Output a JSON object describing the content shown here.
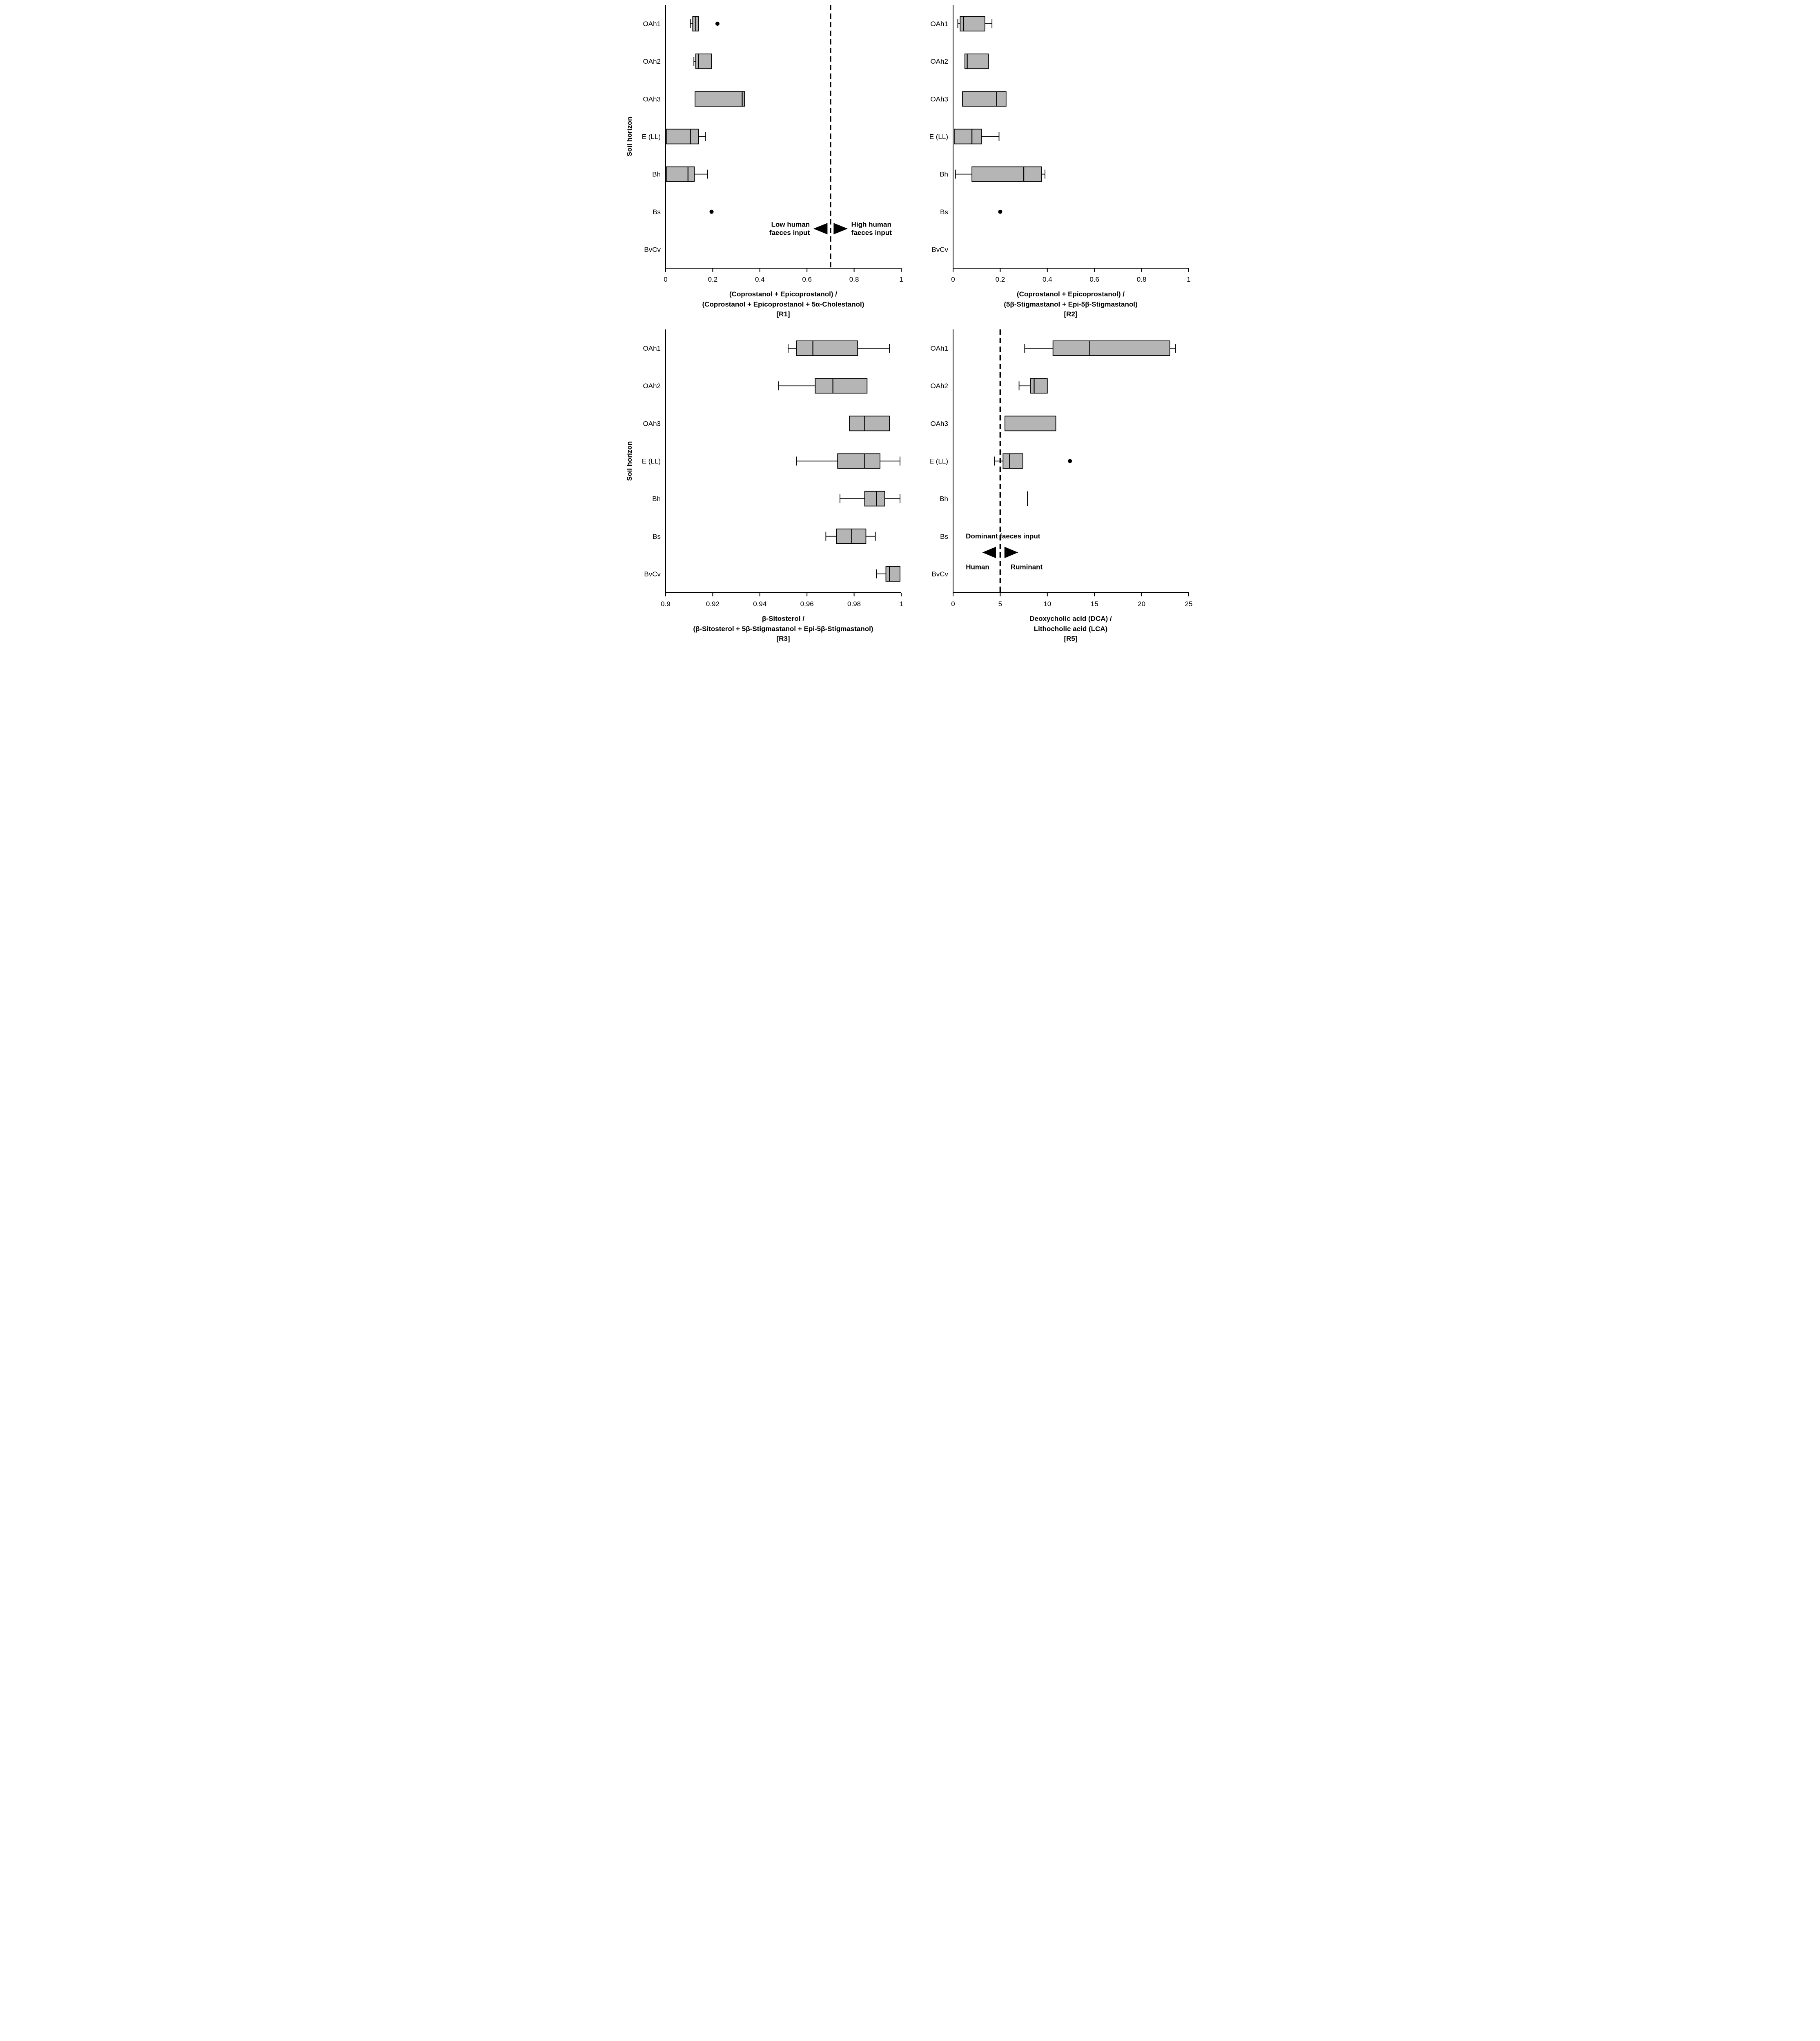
{
  "figure": {
    "ylabel": "Soil horizon",
    "colors": {
      "box_fill": "#b5b5b5",
      "stroke": "#000000",
      "background": "#ffffff"
    }
  },
  "chart_data": [
    {
      "type": "boxplot",
      "orientation": "horizontal",
      "panel_id": "R1",
      "show_ylabel": true,
      "title_lines": [
        "(Coprostanol + Epicoprostanol) /",
        "(Coprostanol + Epicoprostanol + 5α-Cholestanol)",
        "[R1]"
      ],
      "categories": [
        "OAh1",
        "OAh2",
        "OAh3",
        "E (LL)",
        "Bh",
        "Bs",
        "BvCv"
      ],
      "xlim": [
        0,
        1
      ],
      "xticks": [
        0,
        0.2,
        0.4,
        0.6,
        0.8,
        1
      ],
      "xtick_labels": [
        "0",
        "0.2",
        "0.4",
        "0.6",
        "0.8",
        "1"
      ],
      "dashed_line_x": 0.7,
      "boxes": [
        {
          "category": "OAh1",
          "low": 0.105,
          "q1": 0.115,
          "median": 0.128,
          "q3": 0.14,
          "high": null,
          "outliers": [
            0.22
          ]
        },
        {
          "category": "OAh2",
          "low": 0.12,
          "q1": 0.128,
          "median": 0.14,
          "q3": 0.195,
          "high": null,
          "outliers": []
        },
        {
          "category": "OAh3",
          "low": null,
          "q1": 0.125,
          "median": 0.325,
          "q3": 0.335,
          "high": null,
          "outliers": []
        },
        {
          "category": "E (LL)",
          "low": null,
          "q1": 0.003,
          "median": 0.105,
          "q3": 0.14,
          "high": 0.17,
          "outliers": []
        },
        {
          "category": "Bh",
          "low": null,
          "q1": 0.003,
          "median": 0.095,
          "q3": 0.122,
          "high": 0.178,
          "outliers": []
        },
        {
          "category": "Bs",
          "low": null,
          "q1": null,
          "median": null,
          "q3": null,
          "high": null,
          "outliers": [
            0.195
          ]
        },
        {
          "category": "BvCv",
          "low": null,
          "q1": null,
          "median": null,
          "q3": null,
          "high": null,
          "outliers": []
        }
      ],
      "annotations": [
        {
          "text": "Low human\nfaeces input",
          "x": 0.612,
          "row_u": 5.95,
          "anchor": "end"
        },
        {
          "text": "High human\nfaeces input",
          "x": 0.788,
          "row_u": 5.95,
          "anchor": "start"
        }
      ],
      "arrows": [
        {
          "tip_x": 0.627,
          "back_x": 0.687,
          "row_u": 5.95
        },
        {
          "tip_x": 0.773,
          "back_x": 0.713,
          "row_u": 5.95
        }
      ]
    },
    {
      "type": "boxplot",
      "orientation": "horizontal",
      "panel_id": "R2",
      "show_ylabel": false,
      "title_lines": [
        "(Coprostanol + Epicoprostanol) /",
        "(5β-Stigmastanol + Epi-5β-Stigmastanol)",
        "[R2]"
      ],
      "categories": [
        "OAh1",
        "OAh2",
        "OAh3",
        "E (LL)",
        "Bh",
        "Bs",
        "BvCv"
      ],
      "xlim": [
        0,
        1
      ],
      "xticks": [
        0,
        0.2,
        0.4,
        0.6,
        0.8,
        1
      ],
      "xtick_labels": [
        "0",
        "0.2",
        "0.4",
        "0.6",
        "0.8",
        "1"
      ],
      "dashed_line_x": null,
      "boxes": [
        {
          "category": "OAh1",
          "low": 0.02,
          "q1": 0.03,
          "median": 0.045,
          "q3": 0.135,
          "high": 0.165,
          "outliers": []
        },
        {
          "category": "OAh2",
          "low": null,
          "q1": 0.05,
          "median": 0.06,
          "q3": 0.15,
          "high": null,
          "outliers": []
        },
        {
          "category": "OAh3",
          "low": null,
          "q1": 0.04,
          "median": 0.185,
          "q3": 0.225,
          "high": null,
          "outliers": []
        },
        {
          "category": "E (LL)",
          "low": null,
          "q1": 0.005,
          "median": 0.08,
          "q3": 0.12,
          "high": 0.195,
          "outliers": []
        },
        {
          "category": "Bh",
          "low": 0.01,
          "q1": 0.08,
          "median": 0.3,
          "q3": 0.375,
          "high": 0.39,
          "outliers": []
        },
        {
          "category": "Bs",
          "low": null,
          "q1": null,
          "median": null,
          "q3": null,
          "high": null,
          "outliers": [
            0.2
          ]
        },
        {
          "category": "BvCv",
          "low": null,
          "q1": null,
          "median": null,
          "q3": null,
          "high": null,
          "outliers": []
        }
      ],
      "annotations": [],
      "arrows": []
    },
    {
      "type": "boxplot",
      "orientation": "horizontal",
      "panel_id": "R3",
      "show_ylabel": true,
      "title_lines": [
        "β-Sitosterol /",
        "(β-Sitosterol + 5β-Stigmastanol + Epi-5β-Stigmastanol)",
        "[R3]"
      ],
      "categories": [
        "OAh1",
        "OAh2",
        "OAh3",
        "E (LL)",
        "Bh",
        "Bs",
        "BvCv"
      ],
      "xlim": [
        0.9,
        1
      ],
      "xticks": [
        0.9,
        0.92,
        0.94,
        0.96,
        0.98,
        1
      ],
      "xtick_labels": [
        "0.9",
        "0.92",
        "0.94",
        "0.96",
        "0.98",
        "1"
      ],
      "dashed_line_x": null,
      "boxes": [
        {
          "category": "OAh1",
          "low": 0.952,
          "q1": 0.9555,
          "median": 0.9625,
          "q3": 0.9815,
          "high": 0.995,
          "outliers": []
        },
        {
          "category": "OAh2",
          "low": 0.948,
          "q1": 0.9635,
          "median": 0.971,
          "q3": 0.9855,
          "high": null,
          "outliers": []
        },
        {
          "category": "OAh3",
          "low": null,
          "q1": 0.978,
          "median": 0.9845,
          "q3": 0.995,
          "high": null,
          "outliers": []
        },
        {
          "category": "E (LL)",
          "low": 0.9555,
          "q1": 0.973,
          "median": 0.9845,
          "q3": 0.991,
          "high": 0.9995,
          "outliers": []
        },
        {
          "category": "Bh",
          "low": 0.974,
          "q1": 0.9845,
          "median": 0.9895,
          "q3": 0.993,
          "high": 0.9995,
          "outliers": []
        },
        {
          "category": "Bs",
          "low": 0.968,
          "q1": 0.9725,
          "median": 0.979,
          "q3": 0.985,
          "high": 0.989,
          "outliers": []
        },
        {
          "category": "BvCv",
          "low": 0.9895,
          "q1": 0.9935,
          "median": 0.995,
          "q3": 0.9995,
          "high": null,
          "outliers": []
        }
      ],
      "annotations": [],
      "arrows": []
    },
    {
      "type": "boxplot",
      "orientation": "horizontal",
      "panel_id": "R5",
      "show_ylabel": false,
      "title_lines": [
        "Deoxycholic acid (DCA) /",
        "Lithocholic acid (LCA)",
        "[R5]"
      ],
      "categories": [
        "OAh1",
        "OAh2",
        "OAh3",
        "E (LL)",
        "Bh",
        "Bs",
        "BvCv"
      ],
      "xlim": [
        0,
        25
      ],
      "xticks": [
        0,
        5,
        10,
        15,
        20,
        25
      ],
      "xtick_labels": [
        "0",
        "5",
        "10",
        "15",
        "20",
        "25"
      ],
      "dashed_line_x": 5,
      "boxes": [
        {
          "category": "OAh1",
          "low": 7.6,
          "q1": 10.6,
          "median": 14.5,
          "q3": 23.0,
          "high": 23.6,
          "outliers": []
        },
        {
          "category": "OAh2",
          "low": 7.0,
          "q1": 8.2,
          "median": 8.6,
          "q3": 10.0,
          "high": null,
          "outliers": []
        },
        {
          "category": "OAh3",
          "low": null,
          "q1": 5.5,
          "median": null,
          "q3": 10.9,
          "high": null,
          "outliers": []
        },
        {
          "category": "E (LL)",
          "low": 4.4,
          "q1": 5.3,
          "median": 6.0,
          "q3": 7.4,
          "high": null,
          "outliers": [
            12.4
          ]
        },
        {
          "category": "Bh",
          "low": null,
          "q1": 7.9,
          "median": 7.9,
          "q3": 7.9,
          "high": null,
          "outliers": []
        },
        {
          "category": "Bs",
          "low": null,
          "q1": null,
          "median": null,
          "q3": null,
          "high": null,
          "outliers": []
        },
        {
          "category": "BvCv",
          "low": null,
          "q1": null,
          "median": null,
          "q3": null,
          "high": null,
          "outliers": []
        }
      ],
      "annotations": [
        {
          "text": "Dominant faeces input",
          "x": 5.3,
          "row_u": 5.5,
          "anchor": "middle"
        },
        {
          "text": "Human",
          "x": 2.6,
          "row_u": 6.32,
          "anchor": "middle"
        },
        {
          "text": "Ruminant",
          "x": 7.8,
          "row_u": 6.32,
          "anchor": "middle"
        }
      ],
      "arrows": [
        {
          "tip_x": 3.1,
          "back_x": 4.55,
          "row_u": 5.93
        },
        {
          "tip_x": 6.9,
          "back_x": 5.45,
          "row_u": 5.93
        }
      ]
    }
  ]
}
